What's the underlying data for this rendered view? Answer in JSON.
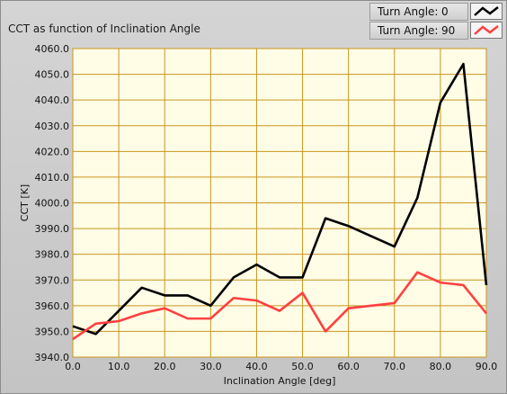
{
  "panel_title": "CCT as function of Inclination Angle",
  "legend": [
    {
      "label": "Turn Angle:",
      "value": "0",
      "color": "#000000"
    },
    {
      "label": "Turn Angle:",
      "value": "90",
      "color": "#ff3b3b"
    }
  ],
  "chart_data": {
    "type": "line",
    "xlabel": "Inclination Angle [deg]",
    "ylabel": "CCT [K]",
    "xlim": [
      0,
      90
    ],
    "ylim": [
      3940,
      4060
    ],
    "xticks": [
      0,
      10,
      20,
      30,
      40,
      50,
      60,
      70,
      80,
      90
    ],
    "yticks": [
      3940,
      3950,
      3960,
      3970,
      3980,
      3990,
      4000,
      4010,
      4020,
      4030,
      4040,
      4050,
      4060
    ],
    "grid": true,
    "x": [
      0,
      5,
      10,
      15,
      20,
      25,
      30,
      35,
      40,
      45,
      50,
      55,
      60,
      65,
      70,
      75,
      80,
      85,
      90
    ],
    "series": [
      {
        "name": "Turn Angle: 0",
        "color": "#000000",
        "values": [
          3952,
          3949,
          3958,
          3967,
          3964,
          3964,
          3960,
          3971,
          3976,
          3971,
          3971,
          3994,
          3991,
          3987,
          3983,
          4002,
          4039,
          4054,
          3968
        ]
      },
      {
        "name": "Turn Angle: 90",
        "color": "#ff4040",
        "values": [
          3947,
          3953,
          3954,
          3957,
          3959,
          3955,
          3955,
          3963,
          3962,
          3958,
          3965,
          3950,
          3959,
          3960,
          3961,
          3973,
          3969,
          3968,
          3957
        ]
      }
    ]
  }
}
